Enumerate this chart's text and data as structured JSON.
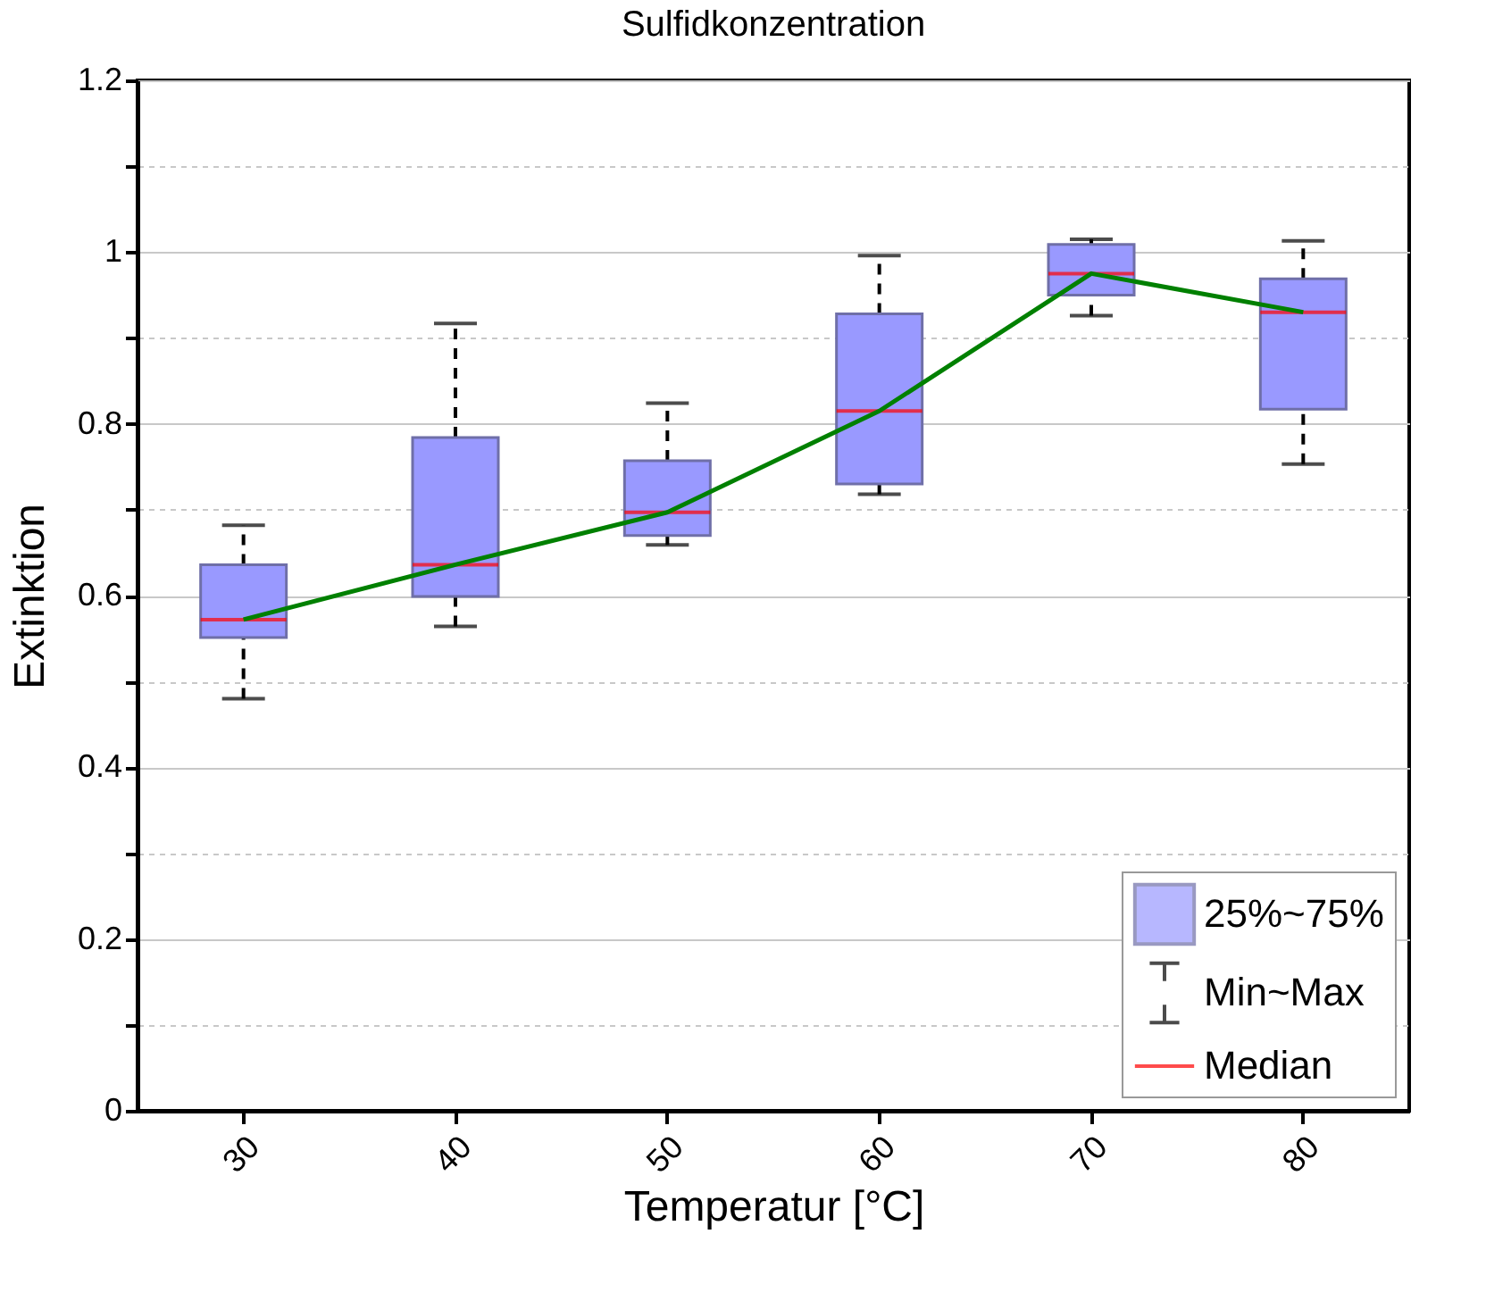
{
  "chart_data": {
    "type": "box",
    "title": "Sulfidkonzentration",
    "xlabel": "Temperatur [°C]",
    "ylabel": "Extinktion",
    "categories": [
      "30",
      "40",
      "50",
      "60",
      "70",
      "80"
    ],
    "series": [
      {
        "name": "25%~75%",
        "color": "#9999ff",
        "boxes": [
          {
            "low": 0.48,
            "q1": 0.551,
            "median": 0.572,
            "q3": 0.636,
            "high": 0.682
          },
          {
            "low": 0.564,
            "q1": 0.599,
            "median": 0.636,
            "q3": 0.784,
            "high": 0.917
          },
          {
            "low": 0.659,
            "q1": 0.67,
            "median": 0.697,
            "q3": 0.757,
            "high": 0.824
          },
          {
            "low": 0.718,
            "q1": 0.73,
            "median": 0.815,
            "q3": 0.928,
            "high": 0.996
          },
          {
            "low": 0.926,
            "q1": 0.95,
            "median": 0.975,
            "q3": 1.009,
            "high": 1.015
          },
          {
            "low": 0.753,
            "q1": 0.817,
            "median": 0.93,
            "q3": 0.969,
            "high": 1.013
          }
        ]
      },
      {
        "type": "line",
        "color": "#008000",
        "values": [
          0.572,
          0.636,
          0.697,
          0.815,
          0.975,
          0.93
        ]
      }
    ],
    "annotations": [
      "Min~Max",
      "Median"
    ],
    "ylim": [
      0,
      1.2
    ],
    "yticks": [
      0,
      {
        "value": 0.1,
        "label": null
      },
      0.2,
      {
        "value": 0.3,
        "label": null
      },
      0.4,
      {
        "value": 0.5,
        "label": null
      },
      0.6,
      {
        "value": 0.7,
        "label": null
      },
      0.8,
      {
        "value": 0.9,
        "label": null
      },
      1,
      {
        "value": 1.1,
        "label": null
      },
      1.2
    ],
    "grid": "y",
    "legend": "bottom right"
  }
}
